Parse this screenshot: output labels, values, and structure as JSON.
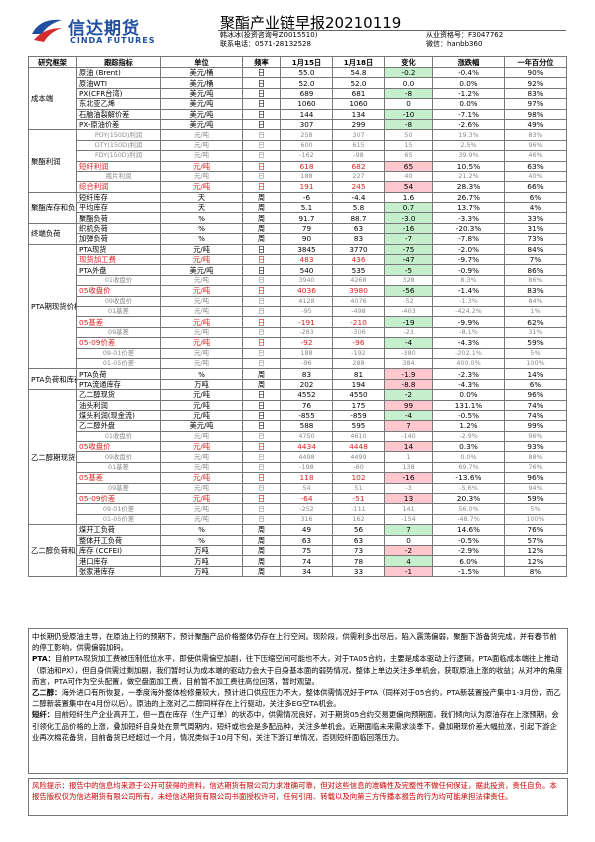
{
  "header": {
    "logo_cn": "信达期货",
    "logo_en": "CINDA FUTURES",
    "title": "聚酯产业链早报20210119",
    "analyst": "韩冰冰(投资咨询号Z0015510)",
    "contact": "联系电话：0571-28132528",
    "qualification": "从业资格号：F3047762",
    "wechat": "微信：hanbb360",
    "brand_color": "#1f4fa1"
  },
  "table": {
    "headers": [
      "研究框架",
      "跟踪指标",
      "单位",
      "频率",
      "1月15日",
      "1月18日",
      "变化",
      "涨跌幅",
      "一年百分位"
    ],
    "sections": [
      {
        "category": "成本端",
        "rows": [
          {
            "ind": "原油 (Brent)",
            "unit": "美元/桶",
            "freq": "日",
            "d1": "55.0",
            "d2": "54.8",
            "chg": "-0.2",
            "pct": "-0.4%",
            "rank": "90%",
            "c": "g"
          },
          {
            "ind": "原油WTI",
            "unit": "美元/桶",
            "freq": "日",
            "d1": "52.0",
            "d2": "52.0",
            "chg": "0.0",
            "pct": "0.0%",
            "rank": "92%"
          },
          {
            "ind": "PX(CFR台湾)",
            "unit": "美元/吨",
            "freq": "日",
            "d1": "689",
            "d2": "681",
            "chg": "-8",
            "pct": "-1.2%",
            "rank": "83%",
            "c": "g"
          },
          {
            "ind": "东北亚乙烯",
            "unit": "美元/吨",
            "freq": "日",
            "d1": "1060",
            "d2": "1060",
            "chg": "0",
            "pct": "0.0%",
            "rank": "97%"
          },
          {
            "ind": "石脑油裂解价差",
            "unit": "美元/吨",
            "freq": "日",
            "d1": "144",
            "d2": "134",
            "chg": "-10",
            "pct": "-7.1%",
            "rank": "98%",
            "c": "g"
          },
          {
            "ind": "PX-原油价差",
            "unit": "美元/吨",
            "freq": "日",
            "d1": "307",
            "d2": "299",
            "chg": "-8",
            "pct": "-2.6%",
            "rank": "49%",
            "c": "g"
          }
        ]
      },
      {
        "category": "聚酯利润",
        "rows": [
          {
            "ind": "POY(150D)利润",
            "unit": "元/吨",
            "freq": "日",
            "d1": "258",
            "d2": "307",
            "chg": "50",
            "pct": "19.3%",
            "rank": "83%",
            "s": "sub"
          },
          {
            "ind": "DTY(150D)利润",
            "unit": "元/吨",
            "freq": "日",
            "d1": "600",
            "d2": "615",
            "chg": "15",
            "pct": "2.5%",
            "rank": "96%",
            "s": "sub"
          },
          {
            "ind": "FDY(150D)利润",
            "unit": "元/吨",
            "freq": "日",
            "d1": "-162",
            "d2": "-98",
            "chg": "65",
            "pct": "39.9%",
            "rank": "46%",
            "s": "sub"
          },
          {
            "ind": "短纤利润",
            "unit": "元/吨",
            "freq": "日",
            "d1": "618",
            "d2": "682",
            "chg": "65",
            "pct": "10.5%",
            "rank": "63%",
            "c": "r",
            "s": "red"
          },
          {
            "ind": "瓶片利润",
            "unit": "元/吨",
            "freq": "日",
            "d1": "188",
            "d2": "227",
            "chg": "40",
            "pct": "21.2%",
            "rank": "40%",
            "s": "sub"
          },
          {
            "ind": "综合利润",
            "unit": "元/吨",
            "freq": "日",
            "d1": "191",
            "d2": "245",
            "chg": "54",
            "pct": "28.3%",
            "rank": "66%",
            "c": "r",
            "s": "red"
          }
        ]
      },
      {
        "category": "聚酯库存和负荷",
        "rows": [
          {
            "ind": "短纤库存",
            "unit": "天",
            "freq": "周",
            "d1": "-6",
            "d2": "-4.4",
            "chg": "1.6",
            "pct": "26.7%",
            "rank": "6%"
          },
          {
            "ind": "平均库存",
            "unit": "天",
            "freq": "周",
            "d1": "5.1",
            "d2": "5.8",
            "chg": "0.7",
            "pct": "13.7%",
            "rank": "4%",
            "c": "g"
          },
          {
            "ind": "聚酯负荷",
            "unit": "%",
            "freq": "周",
            "d1": "91.7",
            "d2": "88.7",
            "chg": "-3.0",
            "pct": "-3.3%",
            "rank": "33%",
            "c": "g"
          }
        ]
      },
      {
        "category": "终端负荷",
        "rows": [
          {
            "ind": "织机负荷",
            "unit": "%",
            "freq": "周",
            "d1": "79",
            "d2": "63",
            "chg": "-16",
            "pct": "-20.3%",
            "rank": "31%",
            "c": "g"
          },
          {
            "ind": "加弹负荷",
            "unit": "%",
            "freq": "周",
            "d1": "90",
            "d2": "83",
            "chg": "-7",
            "pct": "-7.8%",
            "rank": "73%",
            "c": "g"
          }
        ]
      },
      {
        "category": "PTA期现货价格和价差",
        "rows": [
          {
            "ind": "PTA现货",
            "unit": "元/吨",
            "freq": "日",
            "d1": "3845",
            "d2": "3770",
            "chg": "-75",
            "pct": "-2.0%",
            "rank": "84%",
            "c": "g"
          },
          {
            "ind": "现货加工费",
            "unit": "元/吨",
            "freq": "日",
            "d1": "483",
            "d2": "436",
            "chg": "-47",
            "pct": "-9.7%",
            "rank": "7%",
            "c": "g",
            "s": "red"
          },
          {
            "ind": "PTA外盘",
            "unit": "美元/吨",
            "freq": "日",
            "d1": "540",
            "d2": "535",
            "chg": "-5",
            "pct": "-0.9%",
            "rank": "86%",
            "c": "g"
          },
          {
            "ind": "01收盘价",
            "unit": "元/吨",
            "freq": "日",
            "d1": "3940",
            "d2": "4268",
            "chg": "328",
            "pct": "8.3%",
            "rank": "86%",
            "s": "sub"
          },
          {
            "ind": "05收盘价",
            "unit": "元/吨",
            "freq": "日",
            "d1": "4036",
            "d2": "3980",
            "chg": "-56",
            "pct": "-1.4%",
            "rank": "83%",
            "c": "g",
            "s": "red"
          },
          {
            "ind": "09收盘价",
            "unit": "元/吨",
            "freq": "日",
            "d1": "4128",
            "d2": "4076",
            "chg": "-52",
            "pct": "-1.3%",
            "rank": "84%",
            "s": "sub"
          },
          {
            "ind": "01基差",
            "unit": "元/吨",
            "freq": "日",
            "d1": "-95",
            "d2": "-498",
            "chg": "-403",
            "pct": "-424.2%",
            "rank": "1%",
            "s": "sub"
          },
          {
            "ind": "05基差",
            "unit": "元/吨",
            "freq": "日",
            "d1": "-191",
            "d2": "-210",
            "chg": "-19",
            "pct": "-9.9%",
            "rank": "62%",
            "c": "g",
            "s": "red"
          },
          {
            "ind": "09基差",
            "unit": "元/吨",
            "freq": "日",
            "d1": "-283",
            "d2": "-306",
            "chg": "-23",
            "pct": "-8.1%",
            "rank": "31%",
            "s": "sub"
          },
          {
            "ind": "05-09价差",
            "unit": "元/吨",
            "freq": "日",
            "d1": "-92",
            "d2": "-96",
            "chg": "-4",
            "pct": "-4.3%",
            "rank": "59%",
            "c": "g",
            "s": "red"
          },
          {
            "ind": "09-01价差",
            "unit": "元/吨",
            "freq": "日",
            "d1": "188",
            "d2": "-192",
            "chg": "-380",
            "pct": "-202.1%",
            "rank": "5%",
            "s": "sub"
          },
          {
            "ind": "01-05价差",
            "unit": "元/吨",
            "freq": "日",
            "d1": "-96",
            "d2": "288",
            "chg": "384",
            "pct": "400.0%",
            "rank": "100%",
            "s": "sub"
          }
        ]
      },
      {
        "category": "PTA负荷和库存",
        "rows": [
          {
            "ind": "PTA负荷",
            "unit": "%",
            "freq": "周",
            "d1": "83",
            "d2": "81",
            "chg": "-1.9",
            "pct": "-2.3%",
            "rank": "14%",
            "c": "r"
          },
          {
            "ind": "PTA流通库存",
            "unit": "万吨",
            "freq": "周",
            "d1": "202",
            "d2": "194",
            "chg": "-8.8",
            "pct": "-4.3%",
            "rank": "6%",
            "c": "r"
          }
        ]
      },
      {
        "category": "乙二醇期现货价格和价差",
        "rows": [
          {
            "ind": "乙二醇现货",
            "unit": "元/吨",
            "freq": "日",
            "d1": "4552",
            "d2": "4550",
            "chg": "-2",
            "pct": "0.0%",
            "rank": "96%",
            "c": "g"
          },
          {
            "ind": "油头利润",
            "unit": "元/吨",
            "freq": "日",
            "d1": "76",
            "d2": "175",
            "chg": "99",
            "pct": "131.1%",
            "rank": "74%",
            "c": "r"
          },
          {
            "ind": "煤头利润(现金流)",
            "unit": "元/吨",
            "freq": "日",
            "d1": "-855",
            "d2": "-859",
            "chg": "-4",
            "pct": "-0.5%",
            "rank": "74%",
            "c": "g"
          },
          {
            "ind": "乙二醇外盘",
            "unit": "美元/吨",
            "freq": "日",
            "d1": "588",
            "d2": "595",
            "chg": "7",
            "pct": "1.2%",
            "rank": "99%",
            "c": "r"
          },
          {
            "ind": "01收盘价",
            "unit": "元/吨",
            "freq": "日",
            "d1": "4750",
            "d2": "4610",
            "chg": "-140",
            "pct": "-2.9%",
            "rank": "96%",
            "s": "sub"
          },
          {
            "ind": "05收盘价",
            "unit": "元/吨",
            "freq": "日",
            "d1": "4434",
            "d2": "4448",
            "chg": "14",
            "pct": "0.3%",
            "rank": "93%",
            "c": "r",
            "s": "red"
          },
          {
            "ind": "09收盘价",
            "unit": "元/吨",
            "freq": "日",
            "d1": "4498",
            "d2": "4499",
            "chg": "1",
            "pct": "0.0%",
            "rank": "88%",
            "s": "sub"
          },
          {
            "ind": "01基差",
            "unit": "元/吨",
            "freq": "日",
            "d1": "-198",
            "d2": "-60",
            "chg": "138",
            "pct": "69.7%",
            "rank": "76%",
            "s": "sub"
          },
          {
            "ind": "05基差",
            "unit": "元/吨",
            "freq": "日",
            "d1": "118",
            "d2": "102",
            "chg": "-16",
            "pct": "-13.6%",
            "rank": "96%",
            "c": "r",
            "s": "red"
          },
          {
            "ind": "09基差",
            "unit": "元/吨",
            "freq": "日",
            "d1": "54",
            "d2": "51",
            "chg": "-3",
            "pct": "-5.6%",
            "rank": "94%",
            "s": "sub"
          },
          {
            "ind": "05-09价差",
            "unit": "元/吨",
            "freq": "日",
            "d1": "-64",
            "d2": "-51",
            "chg": "13",
            "pct": "20.3%",
            "rank": "59%",
            "c": "r",
            "s": "red"
          },
          {
            "ind": "09-01价差",
            "unit": "元/吨",
            "freq": "日",
            "d1": "-252",
            "d2": "-111",
            "chg": "141",
            "pct": "56.0%",
            "rank": "5%",
            "s": "sub"
          },
          {
            "ind": "01-05价差",
            "unit": "元/吨",
            "freq": "日",
            "d1": "316",
            "d2": "162",
            "chg": "-154",
            "pct": "-48.7%",
            "rank": "100%",
            "s": "sub"
          }
        ]
      },
      {
        "category": "乙二醇负荷和库存",
        "rows": [
          {
            "ind": "煤开工负荷",
            "unit": "%",
            "freq": "周",
            "d1": "49",
            "d2": "56",
            "chg": "7",
            "pct": "14.6%",
            "rank": "76%",
            "c": "g"
          },
          {
            "ind": "整体开工负荷",
            "unit": "%",
            "freq": "周",
            "d1": "63",
            "d2": "63",
            "chg": "0",
            "pct": "-0.5%",
            "rank": "57%"
          },
          {
            "ind": "库存 (CCFEI)",
            "unit": "万吨",
            "freq": "周",
            "d1": "75",
            "d2": "73",
            "chg": "-2",
            "pct": "-2.9%",
            "rank": "12%",
            "c": "r"
          },
          {
            "ind": "港口库存",
            "unit": "万吨",
            "freq": "周",
            "d1": "74",
            "d2": "78",
            "chg": "4",
            "pct": "6.0%",
            "rank": "12%",
            "c": "g"
          },
          {
            "ind": "张家港库存",
            "unit": "万吨",
            "freq": "周",
            "d1": "34",
            "d2": "33",
            "chg": "-1",
            "pct": "-1.5%",
            "rank": "8%",
            "c": "r"
          }
        ]
      }
    ]
  },
  "notes": {
    "intro": "中长期仍受原油主导，在原油上行的预期下，预计聚酯产品价格整体仍存在上行空间。现阶段，供需利多出尽后，陷入震荡偏弱，聚酯下游备货完成，并有春节前的停工影响，供需偏弱加码。",
    "pta_label": "PTA：",
    "pta": "目前PTA现货加工费被压制低位水平，即使供需偏空加剧，往下压缩空间可能也不大，对于TA05合约，主要是成本驱动上行逻辑，PTA面临成本端往上推动（原油和PX），但自身供需过剩加剧，我们暂时认为成本端的驱动力会大于自身基本面的弱势情况，整体上单边关注多单机会，获取原油上涨的收益；从对冲的角度而言，PTA可作为空头配置，做空盘面加工费，目前暂不加工费往高位回落，暂时观望。",
    "meg_label": "乙二醇：",
    "meg": "海外进口有所恢复，一季度海外整体检修量较大，预计进口供应压力不大，整体供需情况好于PTA（同样对于05合约，PTA新装置投产集中1-3月份，而乙二醇新装置集中在4月份以后）。原油的上涨对乙二醇同样存在上行驱动，关注多EG空TA机会。",
    "pf_label": "短纤：",
    "pf": "目前短纤生产企业高开工，但一直在库存（生产订单）的状态中，供需情况良好，对于期货05合约交易更偏向预期面，我们倾向认为原油存在上涨预期，会引领化工品价格的上涨，叠加短纤自身处在景气周期内，短纤或也会是多配品种，关注多单机会。近期面临未来需求淡季下，叠加期现价差大幅拉涨，引起下游企业再次棉花备货，目前备货已经超过一个月，情况类似于10月下旬，关注下游订单情况，否则短纤面临回落压力。"
  },
  "risk": "风险提示：报告中的信息均来源于公开可获得的资料，信达期货有限公司力求准确可靠，但对这些信息的准确性及完整性不做任何保证，据此投资，责任自负。本报告版权仅为信达期货有限公司所有，未经信达期货有限公司书面授权许可，任何引用、转载以及向第三方传播本报告的行为均可能承担法律责任。"
}
